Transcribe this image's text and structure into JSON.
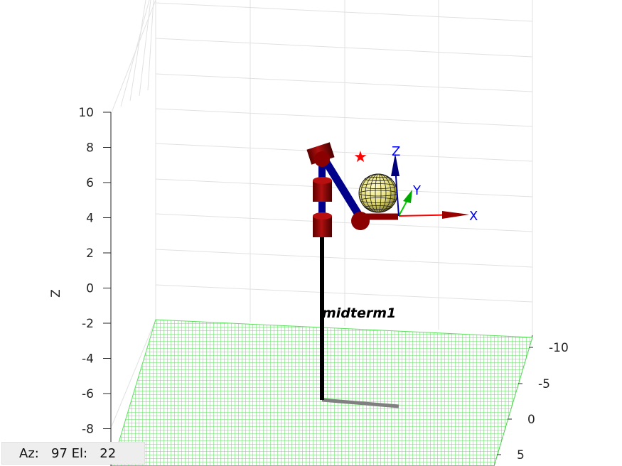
{
  "figure": {
    "zlabel": "Z",
    "z_ticks": [
      "10",
      "8",
      "6",
      "4",
      "2",
      "0",
      "-2",
      "-4",
      "-6",
      "-8"
    ],
    "y_ticks": [
      "-10",
      "-5",
      "0",
      "5"
    ],
    "robot_name": "midterm1",
    "frame_axes": {
      "x": "X",
      "y": "Y",
      "z": "Z"
    },
    "colors": {
      "floor": "#55dd55",
      "links": "#00008b",
      "joints": "#8b0000",
      "sphere": "#e6e07a",
      "target_star": "#ff0000",
      "x_axis": "#ff0000",
      "y_axis": "#00cc00",
      "z_axis": "#0000aa"
    }
  },
  "status": {
    "az_label": "Az:",
    "az_value": "97",
    "el_label": "El:",
    "el_value": "22"
  }
}
